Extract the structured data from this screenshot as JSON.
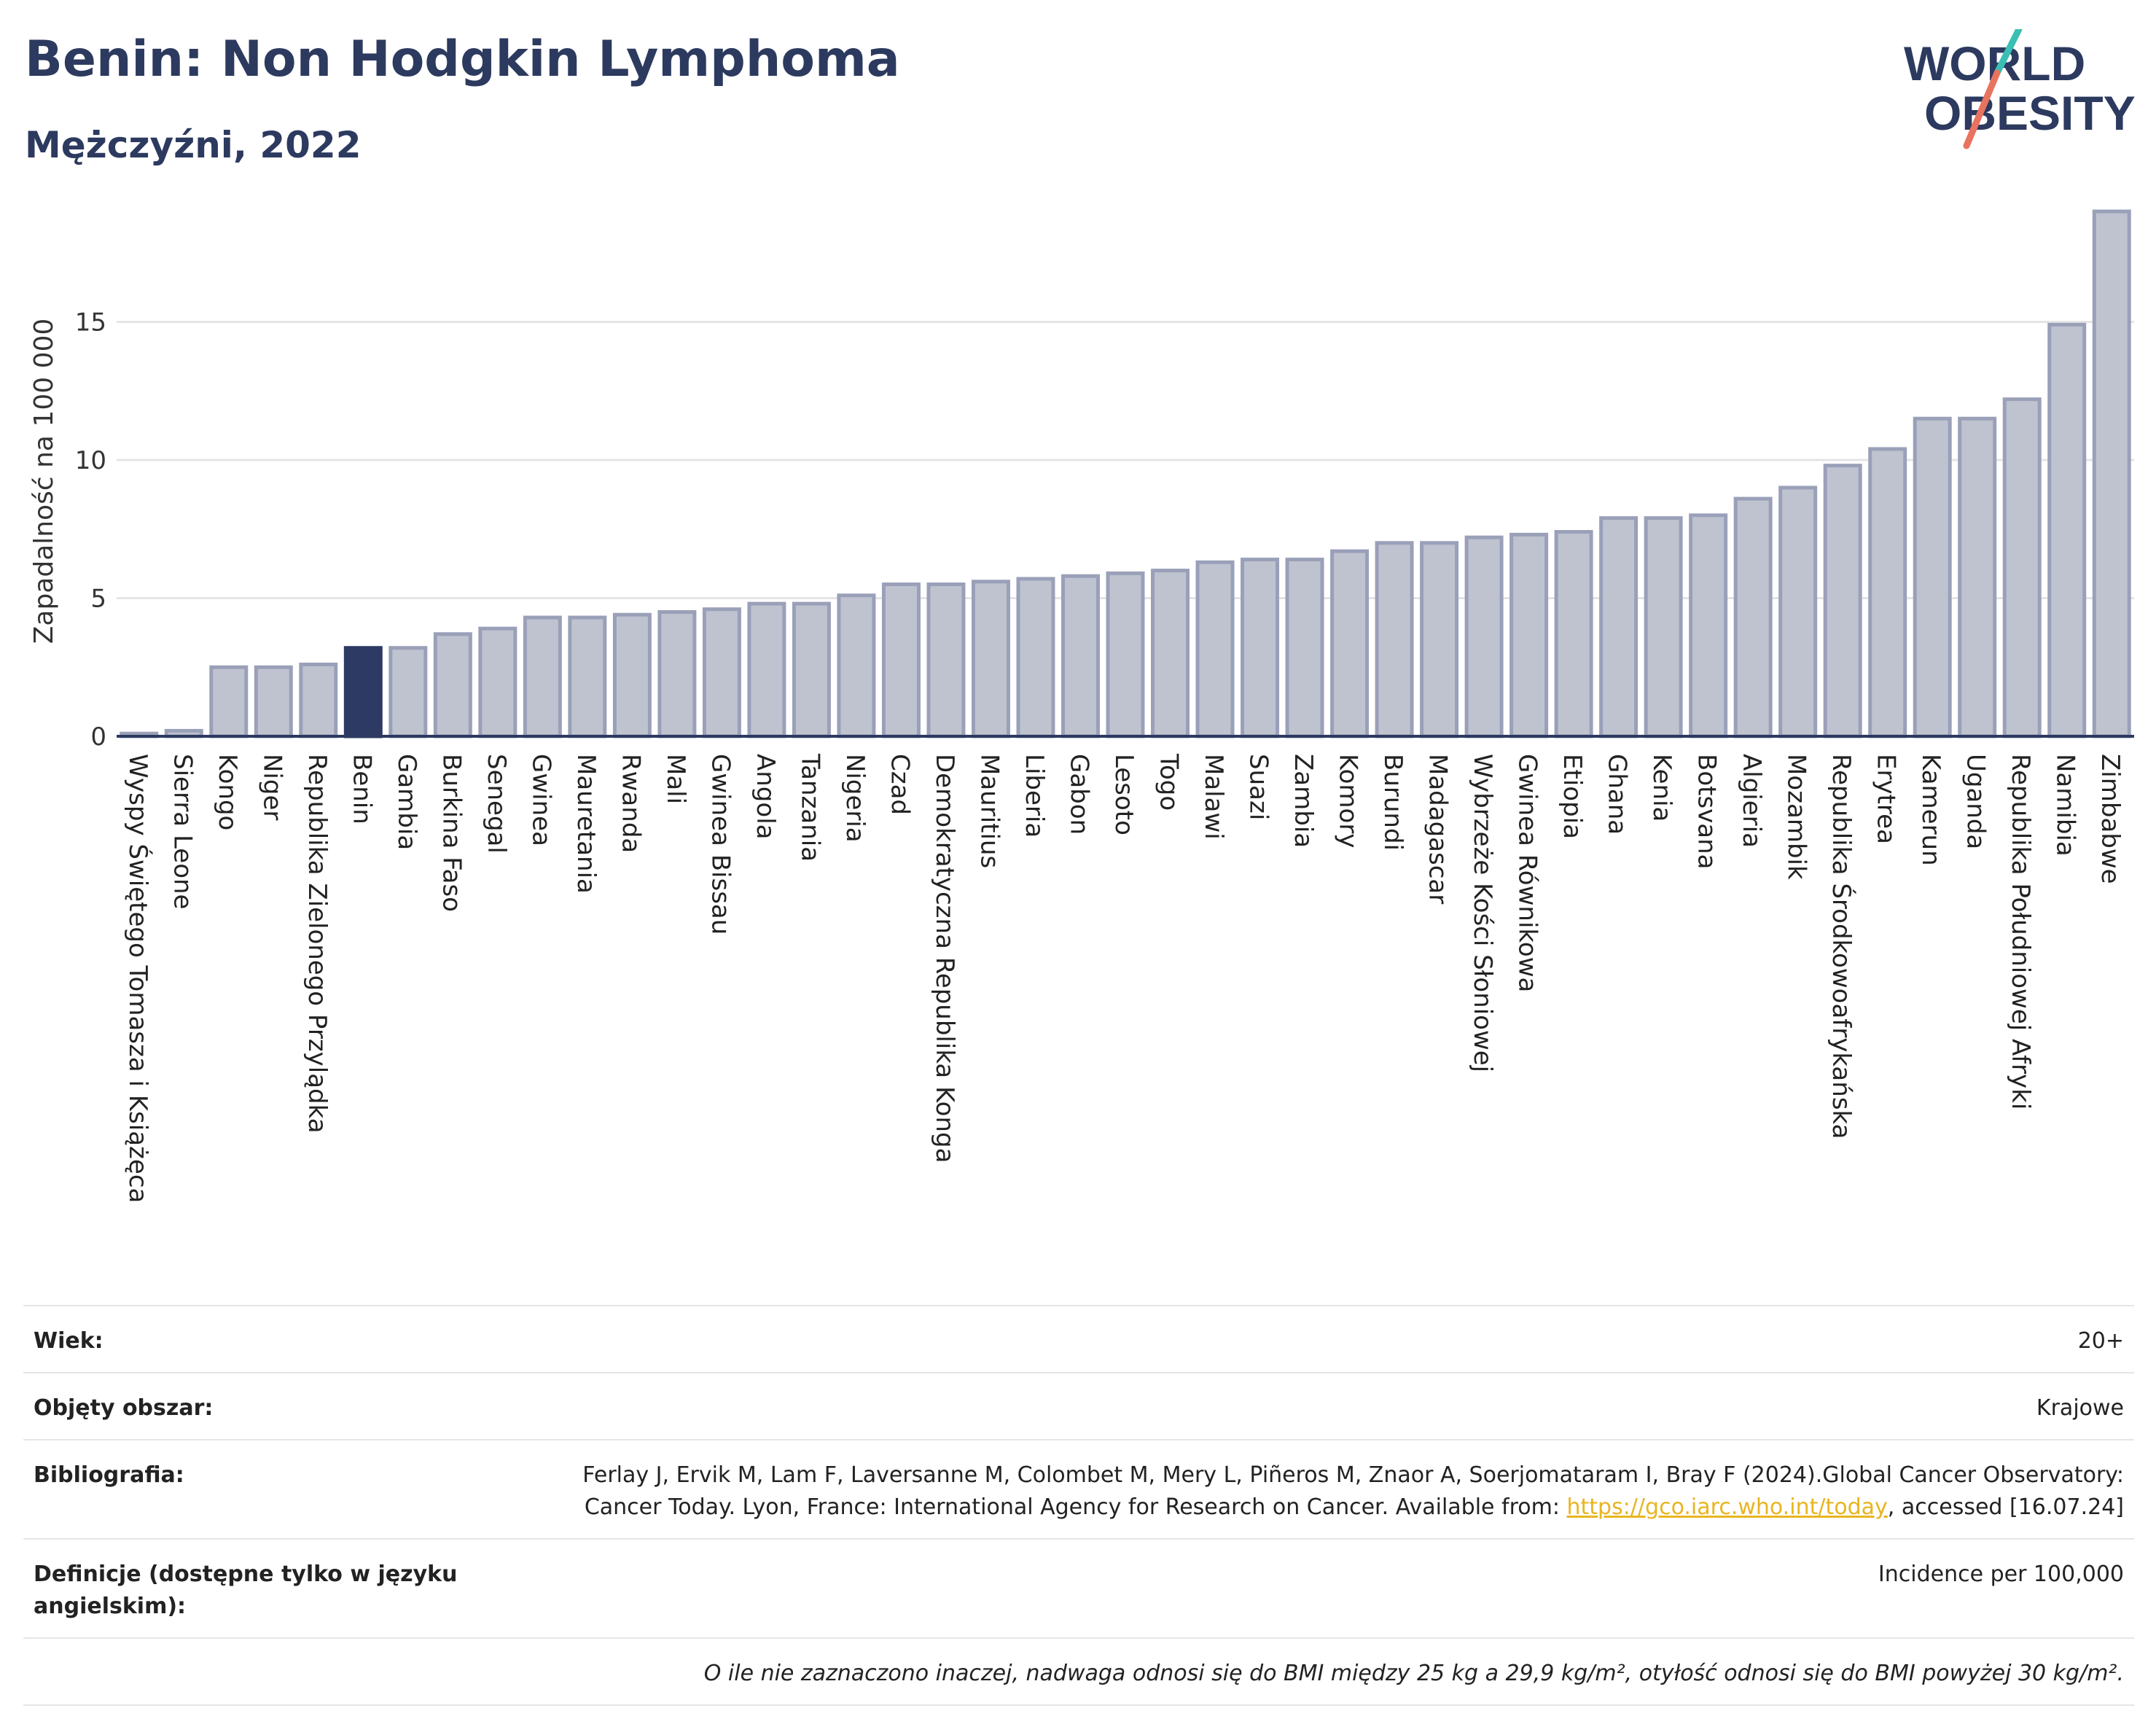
{
  "header": {
    "title": "Benin: Non Hodgkin Lymphoma",
    "subtitle": "Mężczyźni, 2022",
    "logo_line1": "WORLD",
    "logo_line2": "OBESITY"
  },
  "colors": {
    "highlight": "#2d3a63",
    "bar_fill": "#bfc3d0",
    "bar_stroke": "#9aa0b8",
    "title": "#2d3a5f",
    "logo_teal": "#3bbfb5",
    "logo_coral": "#e8735f"
  },
  "chart_data": {
    "type": "bar",
    "ylabel": "Zapadalność na 100 000",
    "ylim": [
      0,
      19
    ],
    "yticks": [
      0,
      5,
      10,
      15
    ],
    "highlight": "Benin",
    "grid": true,
    "categories": [
      "Wyspy Świętego Tomasza i Książęca",
      "Sierra Leone",
      "Kongo",
      "Niger",
      "Republika Zielonego Przylądka",
      "Benin",
      "Gambia",
      "Burkina Faso",
      "Senegal",
      "Gwinea",
      "Mauretania",
      "Rwanda",
      "Mali",
      "Gwinea Bissau",
      "Angola",
      "Tanzania",
      "Nigeria",
      "Czad",
      "Demokratyczna Republika Konga",
      "Mauritius",
      "Liberia",
      "Gabon",
      "Lesoto",
      "Togo",
      "Malawi",
      "Suazi",
      "Zambia",
      "Komory",
      "Burundi",
      "Madagascar",
      "Wybrzeże Kości Słoniowej",
      "Gwinea Równikowa",
      "Etiopia",
      "Ghana",
      "Kenia",
      "Botsvana",
      "Algieria",
      "Mozambik",
      "Republika Środkowoafrykańska",
      "Erytrea",
      "Kamerun",
      "Uganda",
      "Republika Południowej Afryki",
      "Namibia",
      "Zimbabwe"
    ],
    "values": [
      0.1,
      0.2,
      2.5,
      2.5,
      2.6,
      3.2,
      3.2,
      3.7,
      3.9,
      4.3,
      4.3,
      4.4,
      4.5,
      4.6,
      4.8,
      4.8,
      5.1,
      5.5,
      5.5,
      5.6,
      5.7,
      5.8,
      5.9,
      6.0,
      6.3,
      6.4,
      6.4,
      6.7,
      7.0,
      7.0,
      7.2,
      7.3,
      7.4,
      7.9,
      7.9,
      8.0,
      8.6,
      9.0,
      9.8,
      10.4,
      11.5,
      11.5,
      12.2,
      14.9,
      19.0
    ]
  },
  "info": {
    "age_label": "Wiek:",
    "age_value": "20+",
    "coverage_label": "Objęty obszar:",
    "coverage_value": "Krajowe",
    "biblio_label": "Bibliografia:",
    "biblio_text": "Ferlay J, Ervik M, Lam F, Laversanne M, Colombet M, Mery L, Piñeros M, Znaor A, Soerjomataram I, Bray F (2024).Global Cancer Observatory: Cancer Today. Lyon, France: International Agency for Research on Cancer. Available from: ",
    "biblio_link": "https://gco.iarc.who.int/today",
    "biblio_suffix": ", accessed [16.07.24]",
    "definitions_label": "Definicje (dostępne tylko w języku angielskim):",
    "definitions_value": "Incidence per 100,000",
    "note": "O ile nie zaznaczono inaczej, nadwaga odnosi się do BMI między 25 kg a 29,9 kg/m², otyłość odnosi się do BMI powyżej 30 kg/m²."
  }
}
